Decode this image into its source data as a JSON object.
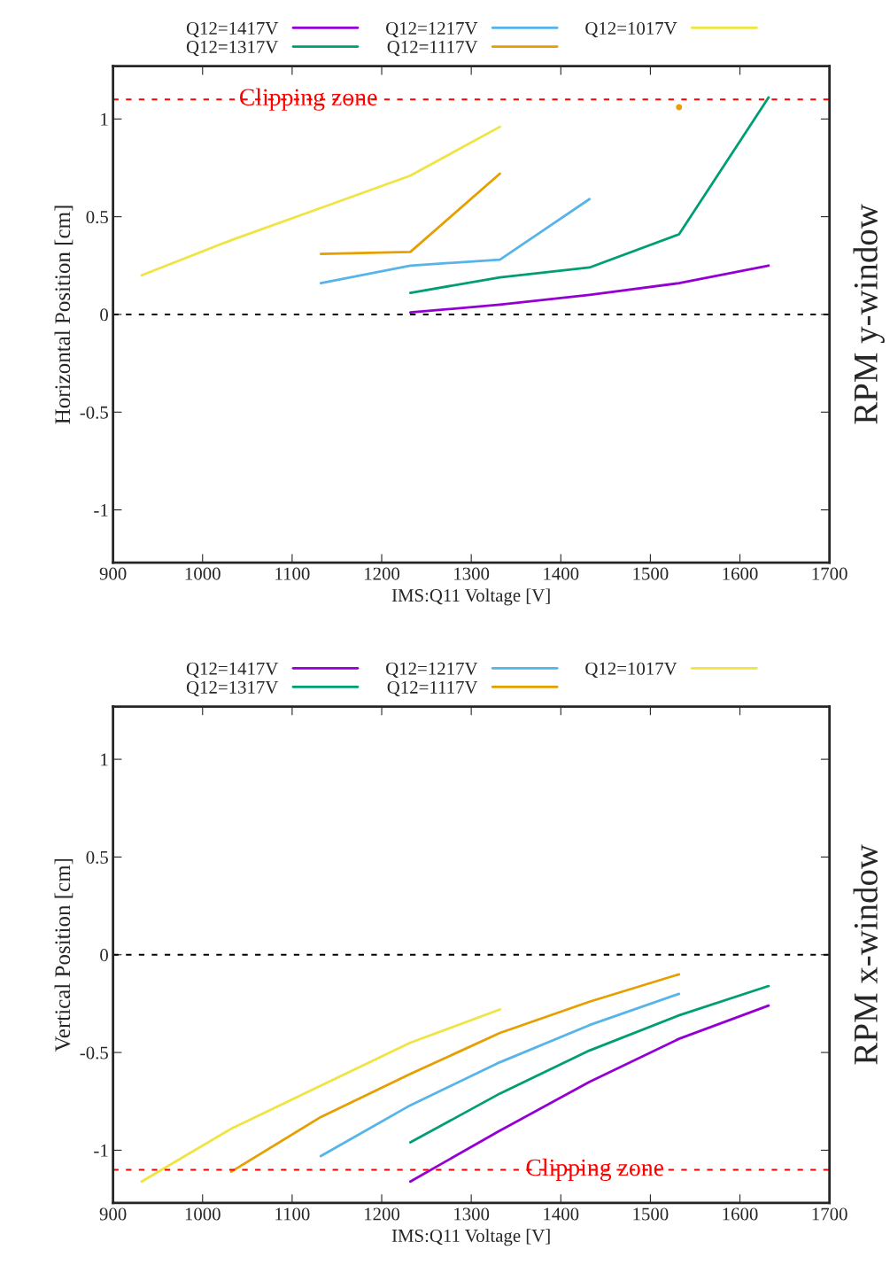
{
  "chart_data": [
    {
      "type": "line",
      "xlabel": "IMS:Q11 Voltage [V]",
      "ylabel": "Horizontal Position [cm]",
      "y2label": "RPM y-window",
      "x": [
        932,
        1032,
        1132,
        1232,
        1332,
        1432,
        1532,
        1632
      ],
      "series": [
        {
          "name": "Q12=1417V",
          "color": "#9400d3",
          "values": [
            null,
            null,
            null,
            0.01,
            0.05,
            0.1,
            0.16,
            0.25
          ]
        },
        {
          "name": "Q12=1317V",
          "color": "#009e73",
          "values": [
            null,
            null,
            null,
            0.11,
            0.19,
            0.24,
            0.41,
            1.11
          ]
        },
        {
          "name": "Q12=1217V",
          "color": "#56b4e9",
          "values": [
            null,
            null,
            0.16,
            0.25,
            0.28,
            0.59,
            null,
            null
          ]
        },
        {
          "name": "Q12=1117V",
          "color": "#e69f00",
          "values": [
            null,
            null,
            0.31,
            0.32,
            0.72,
            null,
            1.06,
            null
          ]
        },
        {
          "name": "Q12=1017V",
          "color": "#f0e442",
          "values": [
            0.2,
            0.38,
            0.545,
            0.71,
            0.96,
            null,
            null,
            null
          ]
        }
      ],
      "xlim": [
        900,
        1700
      ],
      "xticks": [
        900,
        1000,
        1100,
        1200,
        1300,
        1400,
        1500,
        1600,
        1700
      ],
      "ylim": [
        -1.27,
        1.27
      ],
      "yticks": [
        -1,
        -0.5,
        0,
        0.5,
        1
      ],
      "ref_lines": [
        {
          "axis": "y",
          "value": 0,
          "color": "#000000",
          "line_style": "dashed"
        },
        {
          "axis": "y",
          "value": 1.1,
          "color": "#ff0000",
          "line_style": "dashed"
        }
      ],
      "annotations": [
        {
          "text": "Clipping zone",
          "x": 1118,
          "y": 1.1
        }
      ],
      "legend": "top",
      "grid": false,
      "line_style": "solid",
      "marker": "none"
    },
    {
      "type": "line",
      "xlabel": "IMS:Q11 Voltage [V]",
      "ylabel": "Vertical Position [cm]",
      "y2label": "RPM x-window",
      "x": [
        932,
        1032,
        1132,
        1232,
        1332,
        1432,
        1532,
        1632
      ],
      "series": [
        {
          "name": "Q12=1417V",
          "color": "#9400d3",
          "values": [
            null,
            null,
            null,
            -1.16,
            -0.9,
            -0.65,
            -0.43,
            -0.26
          ]
        },
        {
          "name": "Q12=1317V",
          "color": "#009e73",
          "values": [
            null,
            null,
            null,
            -0.96,
            -0.71,
            -0.49,
            -0.31,
            -0.16
          ]
        },
        {
          "name": "Q12=1217V",
          "color": "#56b4e9",
          "values": [
            null,
            null,
            -1.03,
            -0.77,
            -0.55,
            -0.36,
            -0.2,
            null
          ]
        },
        {
          "name": "Q12=1117V",
          "color": "#e69f00",
          "values": [
            null,
            -1.11,
            -0.83,
            -0.61,
            -0.4,
            -0.24,
            -0.1,
            null
          ]
        },
        {
          "name": "Q12=1017V",
          "color": "#f0e442",
          "values": [
            -1.16,
            -0.89,
            -0.67,
            -0.45,
            -0.28,
            null,
            null,
            null
          ]
        }
      ],
      "xlim": [
        900,
        1700
      ],
      "xticks": [
        900,
        1000,
        1100,
        1200,
        1300,
        1400,
        1500,
        1600,
        1700
      ],
      "ylim": [
        -1.27,
        1.27
      ],
      "yticks": [
        -1,
        -0.5,
        0,
        0.5,
        1
      ],
      "ref_lines": [
        {
          "axis": "y",
          "value": 0,
          "color": "#000000",
          "line_style": "dashed"
        },
        {
          "axis": "y",
          "value": -1.1,
          "color": "#ff0000",
          "line_style": "dashed"
        }
      ],
      "annotations": [
        {
          "text": "Clipping zone",
          "x": 1438,
          "y": -1.1
        }
      ],
      "legend": "top",
      "grid": false,
      "line_style": "solid",
      "marker": "none"
    }
  ]
}
